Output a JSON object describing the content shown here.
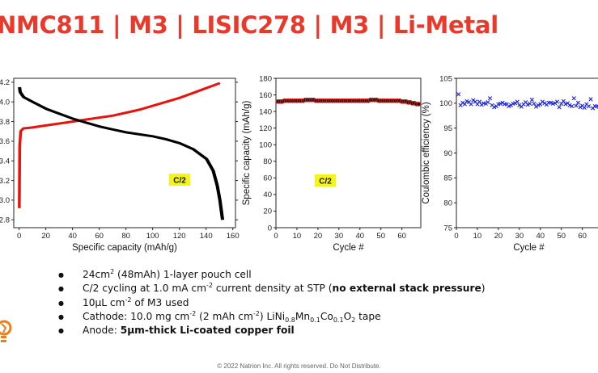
{
  "title": "NMC811 | M3 | LISIC278 | M3 | Li-Metal",
  "footer": "© 2022 Natrion Inc. All rights reserved. Do Not Distribute.",
  "bullets": {
    "b1": {
      "a": "24cm",
      "a_sup": "2",
      "b": " (48mAh) 1-layer pouch cell"
    },
    "b2": {
      "a": "C/2 cycling at 1.0 mA cm",
      "a_sup": "-2",
      "b": " current density at STP (",
      "bold": "no external stack pressure",
      "c": ")"
    },
    "b3": {
      "a": "10μL cm",
      "a_sup": "-2",
      "b": " of M3 used"
    },
    "b4": {
      "a": "Cathode: 10.0 mg cm",
      "a_sup": "-2",
      "b": " (2 mAh cm",
      "b_sup": "-2",
      "c": ") LiNi",
      "c_sub": "0.8",
      "d": "Mn",
      "d_sub": "0.1",
      "e": "Co",
      "e_sub": "0.1",
      "f": "O",
      "f_sub": "2",
      "g": " tape"
    },
    "b5": {
      "a": "Anode: ",
      "bold": "5μm-thick Li-coated copper foil"
    }
  },
  "chart_data": [
    {
      "type": "line",
      "title": "",
      "xlabel": "Specific capacity (mAh/g)",
      "ylabel": "",
      "xlim": [
        -4,
        162
      ],
      "ylim": [
        2.72,
        4.24
      ],
      "xticks": [
        0,
        20,
        40,
        60,
        80,
        100,
        120,
        140,
        160
      ],
      "yticks": [
        "2.8",
        "3.0",
        "3.2",
        "3.4",
        "3.6",
        "3.8",
        "4.0",
        "4.2"
      ],
      "yticks_values": [
        2.8,
        3.0,
        3.2,
        3.4,
        3.6,
        3.8,
        4.0,
        4.2
      ],
      "annotation": "C/2",
      "series": [
        {
          "color": "#e8130c",
          "points": [
            [
              0,
              2.92
            ],
            [
              0.3,
              3.55
            ],
            [
              1,
              3.7
            ],
            [
              3,
              3.73
            ],
            [
              10,
              3.74
            ],
            [
              20,
              3.76
            ],
            [
              30,
              3.78
            ],
            [
              40,
              3.8
            ],
            [
              50,
              3.82
            ],
            [
              60,
              3.84
            ],
            [
              70,
              3.86
            ],
            [
              80,
              3.89
            ],
            [
              90,
              3.92
            ],
            [
              100,
              3.96
            ],
            [
              110,
              4.0
            ],
            [
              120,
              4.04
            ],
            [
              130,
              4.09
            ],
            [
              140,
              4.14
            ],
            [
              150,
              4.19
            ]
          ]
        },
        {
          "color": "#000000",
          "points": [
            [
              0,
              4.15
            ],
            [
              0.5,
              4.1
            ],
            [
              3,
              4.05
            ],
            [
              10,
              4.0
            ],
            [
              20,
              3.93
            ],
            [
              30,
              3.88
            ],
            [
              40,
              3.83
            ],
            [
              50,
              3.79
            ],
            [
              60,
              3.75
            ],
            [
              70,
              3.72
            ],
            [
              80,
              3.69
            ],
            [
              90,
              3.67
            ],
            [
              100,
              3.65
            ],
            [
              110,
              3.62
            ],
            [
              120,
              3.58
            ],
            [
              130,
              3.52
            ],
            [
              140,
              3.42
            ],
            [
              145,
              3.3
            ],
            [
              148,
              3.15
            ],
            [
              150,
              3.0
            ],
            [
              152,
              2.8
            ]
          ]
        }
      ]
    },
    {
      "type": "scatter",
      "title": "",
      "xlabel": "Cycle #",
      "ylabel": "Specific capacity (mAh/g)",
      "xlim": [
        0,
        69
      ],
      "ylim": [
        0,
        180
      ],
      "xticks": [
        0,
        10,
        20,
        30,
        40,
        50,
        60
      ],
      "yticks": [
        0,
        20,
        40,
        60,
        80,
        100,
        120,
        140,
        160,
        180
      ],
      "annotation": "C/2",
      "series": [
        {
          "color": "#d4251b",
          "x": [
            1,
            2,
            3,
            4,
            5,
            6,
            7,
            8,
            9,
            10,
            11,
            12,
            13,
            14,
            15,
            16,
            17,
            18,
            19,
            20,
            21,
            22,
            23,
            24,
            25,
            26,
            27,
            28,
            29,
            30,
            31,
            32,
            33,
            34,
            35,
            36,
            37,
            38,
            39,
            40,
            41,
            42,
            43,
            44,
            45,
            46,
            47,
            48,
            49,
            50,
            51,
            52,
            53,
            54,
            55,
            56,
            57,
            58,
            59,
            60,
            61,
            62,
            63,
            64,
            65,
            66,
            67,
            68
          ],
          "values": [
            152,
            152,
            152,
            153,
            153,
            153,
            153,
            153,
            153,
            153,
            153,
            153,
            153,
            154,
            154,
            154,
            154,
            154,
            153,
            153,
            153,
            153,
            153,
            153,
            153,
            153,
            153,
            153,
            153,
            153,
            153,
            153,
            153,
            153,
            153,
            153,
            153,
            153,
            153,
            153,
            153,
            153,
            153,
            153,
            154,
            154,
            154,
            154,
            153,
            153,
            153,
            153,
            153,
            153,
            153,
            153,
            153,
            153,
            153,
            152,
            152,
            152,
            151,
            151,
            150,
            150,
            149,
            149
          ]
        }
      ]
    },
    {
      "type": "scatter",
      "title": "",
      "xlabel": "Cycle #",
      "ylabel": "Coulombic efficiency (%)",
      "xlim": [
        0,
        69
      ],
      "ylim": [
        75,
        105
      ],
      "xticks": [
        0,
        10,
        20,
        30,
        40,
        50,
        60
      ],
      "yticks": [
        75,
        80,
        85,
        90,
        95,
        100,
        105
      ],
      "series": [
        {
          "color": "#1a24e0",
          "x": [
            1,
            2,
            3,
            4,
            5,
            6,
            7,
            8,
            9,
            10,
            11,
            12,
            13,
            14,
            15,
            16,
            17,
            18,
            19,
            20,
            21,
            22,
            23,
            24,
            25,
            26,
            27,
            28,
            29,
            30,
            31,
            32,
            33,
            34,
            35,
            36,
            37,
            38,
            39,
            40,
            41,
            42,
            43,
            44,
            45,
            46,
            47,
            48,
            49,
            50,
            51,
            52,
            53,
            54,
            55,
            56,
            57,
            58,
            59,
            60,
            61,
            62,
            63,
            64,
            65,
            66,
            67,
            68
          ],
          "values": [
            101.8,
            99.6,
            100.1,
            99.8,
            100.4,
            100.2,
            99.8,
            100.6,
            100.3,
            99.8,
            100.3,
            99.7,
            100.0,
            99.9,
            100.2,
            101.0,
            99.6,
            99.2,
            99.4,
            99.8,
            99.9,
            100.1,
            99.8,
            99.8,
            99.4,
            99.6,
            99.9,
            100.0,
            100.3,
            99.6,
            99.3,
            99.8,
            100.2,
            99.7,
            99.9,
            100.7,
            99.9,
            99.3,
            99.6,
            99.8,
            100.3,
            100.0,
            99.7,
            100.1,
            100.1,
            99.9,
            100.0,
            100.3,
            99.2,
            99.9,
            100.4,
            99.8,
            100.0,
            99.6,
            99.4,
            101.0,
            99.5,
            100.1,
            99.2,
            99.5,
            99.1,
            99.8,
            99.4,
            100.8,
            99.0,
            99.4,
            99.4,
            99.3
          ]
        }
      ]
    }
  ]
}
